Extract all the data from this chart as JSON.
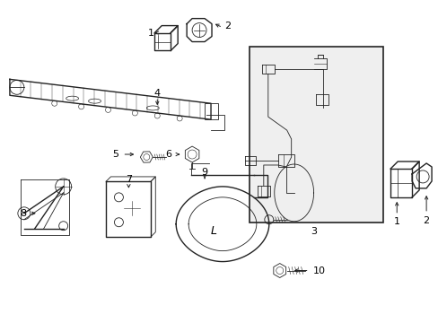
{
  "background_color": "#ffffff",
  "line_color": "#222222",
  "text_color": "#000000",
  "fig_width": 4.89,
  "fig_height": 3.6,
  "dpi": 100
}
